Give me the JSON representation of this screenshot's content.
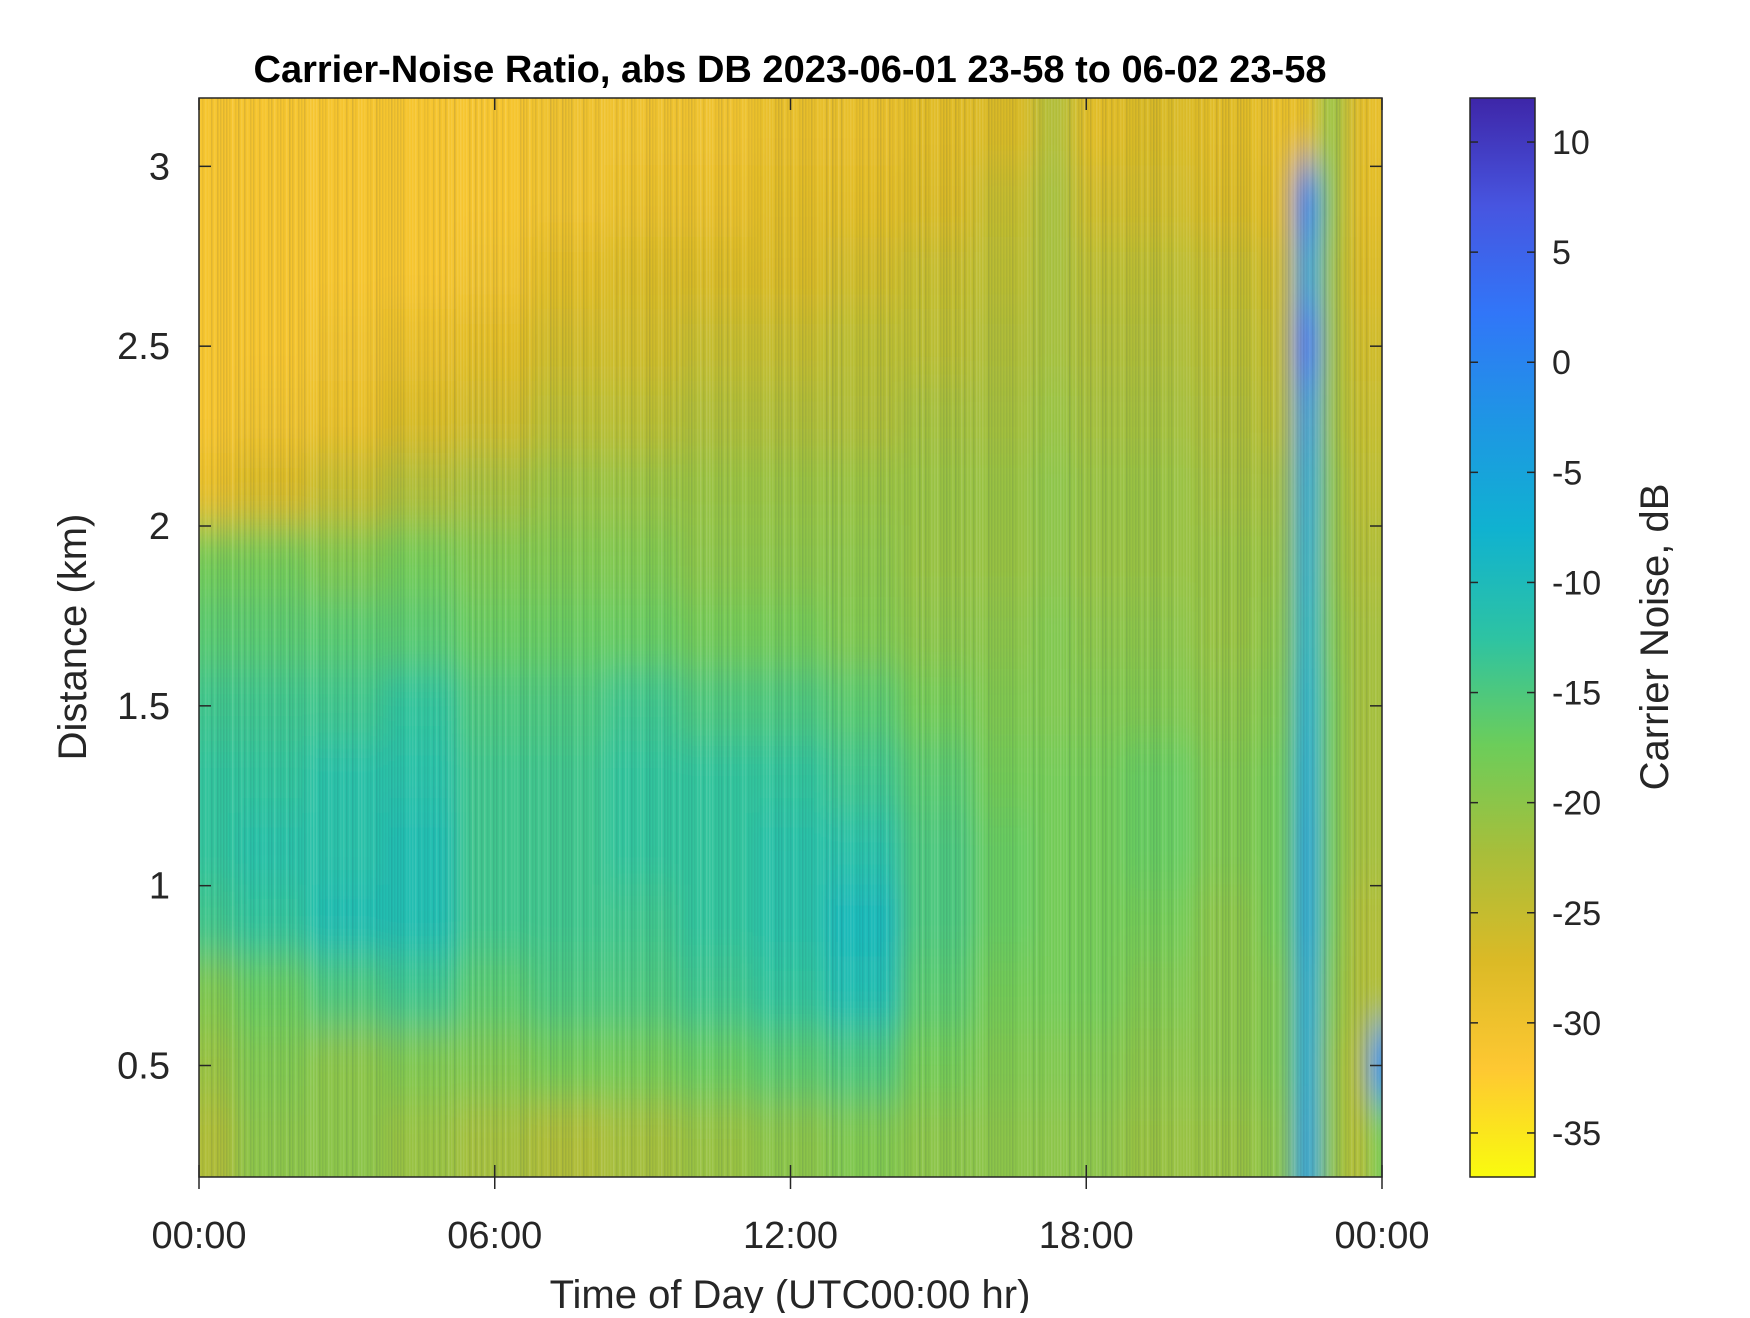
{
  "chart_data": {
    "type": "heatmap",
    "title": "Carrier-Noise Ratio, abs DB 2023-06-01 23-58 to 06-02 23-58",
    "xlabel": "Time of Day (UTC00:00 hr)",
    "ylabel": "Distance (km)",
    "colorbar_label": "Carrier Noise, dB",
    "x_unit": "hours",
    "xlim": [
      0,
      24
    ],
    "ylim": [
      0.19,
      3.19
    ],
    "clim": [
      -37,
      12
    ],
    "colormap": [
      "#f9fb0e",
      "#fec832",
      "#dbba26",
      "#a8be3a",
      "#6ccd5a",
      "#2dc3a3",
      "#10b2d0",
      "#1e96e4",
      "#3176f8",
      "#4755e0",
      "#3e26a8"
    ],
    "x_ticks": [
      {
        "value": 0,
        "label": "00:00"
      },
      {
        "value": 6,
        "label": "06:00"
      },
      {
        "value": 12,
        "label": "12:00"
      },
      {
        "value": 18,
        "label": "18:00"
      },
      {
        "value": 24,
        "label": "00:00"
      }
    ],
    "y_ticks": [
      {
        "value": 0.5,
        "label": "0.5"
      },
      {
        "value": 1,
        "label": "1"
      },
      {
        "value": 1.5,
        "label": "1.5"
      },
      {
        "value": 2,
        "label": "2"
      },
      {
        "value": 2.5,
        "label": "2.5"
      },
      {
        "value": 3,
        "label": "3"
      }
    ],
    "colorbar_ticks": [
      {
        "value": 10,
        "label": "10"
      },
      {
        "value": 5,
        "label": "5"
      },
      {
        "value": 0,
        "label": "0"
      },
      {
        "value": -5,
        "label": "-5"
      },
      {
        "value": -10,
        "label": "-10"
      },
      {
        "value": -15,
        "label": "-15"
      },
      {
        "value": -20,
        "label": "-20"
      },
      {
        "value": -25,
        "label": "-25"
      },
      {
        "value": -30,
        "label": "-30"
      },
      {
        "value": -35,
        "label": "-35"
      }
    ],
    "x_hours": [
      0,
      1.5,
      3,
      4.5,
      6,
      7.5,
      9,
      10.5,
      12,
      13.5,
      15,
      16.5,
      17.5,
      18,
      19.5,
      21,
      22,
      22.5,
      23,
      23.5,
      24
    ],
    "y_km": [
      3.1,
      2.9,
      2.7,
      2.5,
      2.3,
      2.1,
      1.9,
      1.7,
      1.5,
      1.3,
      1.1,
      0.9,
      0.7,
      0.5,
      0.3
    ],
    "values_db": [
      [
        -31,
        -31,
        -31,
        -31,
        -31,
        -30,
        -30,
        -30,
        -29,
        -29,
        -28,
        -27,
        -23,
        -28,
        -27,
        -28,
        -29,
        -29,
        -20,
        -28,
        -29
      ],
      [
        -31,
        -31,
        -31,
        -31,
        -31,
        -30,
        -29,
        -29,
        -28,
        -28,
        -27,
        -25,
        -22,
        -26,
        -26,
        -27,
        -28,
        0,
        -20,
        -28,
        -28
      ],
      [
        -31,
        -31,
        -31,
        -31,
        -30,
        -28,
        -27,
        -27,
        -27,
        -26,
        -25,
        -24,
        -22,
        -24,
        -24,
        -25,
        -26,
        -5,
        -21,
        -27,
        -27
      ],
      [
        -31,
        -31,
        -30,
        -29,
        -28,
        -26,
        -26,
        -25,
        -25,
        -24,
        -24,
        -23,
        -22,
        -23,
        -23,
        -24,
        -25,
        2,
        -21,
        -26,
        -26
      ],
      [
        -31,
        -30,
        -29,
        -27,
        -26,
        -24,
        -24,
        -23,
        -23,
        -23,
        -22,
        -22,
        -21,
        -22,
        -22,
        -23,
        -24,
        -4,
        -21,
        -25,
        -25
      ],
      [
        -29,
        -27,
        -25,
        -23,
        -22,
        -21,
        -21,
        -21,
        -21,
        -21,
        -21,
        -21,
        -20,
        -21,
        -21,
        -22,
        -22,
        -6,
        -20,
        -24,
        -24
      ],
      [
        -18,
        -18,
        -19,
        -18,
        -19,
        -19,
        -19,
        -20,
        -20,
        -20,
        -21,
        -21,
        -20,
        -21,
        -21,
        -21,
        -21,
        -7,
        -20,
        -23,
        -23
      ],
      [
        -16,
        -16,
        -16,
        -16,
        -17,
        -17,
        -17,
        -18,
        -18,
        -19,
        -20,
        -20,
        -19,
        -20,
        -20,
        -21,
        -20,
        -8,
        -19,
        -22,
        -22
      ],
      [
        -14,
        -14,
        -14,
        -13,
        -15,
        -15,
        -14,
        -15,
        -15,
        -16,
        -18,
        -19,
        -19,
        -19,
        -19,
        -20,
        -19,
        -7,
        -18,
        -22,
        -22
      ],
      [
        -13,
        -13,
        -12,
        -12,
        -14,
        -14,
        -13,
        -13,
        -13,
        -14,
        -16,
        -18,
        -18,
        -18,
        -17,
        -19,
        -18,
        -6,
        -18,
        -22,
        -22
      ],
      [
        -13,
        -12,
        -12,
        -11,
        -14,
        -14,
        -13,
        -13,
        -12,
        -12,
        -15,
        -17,
        -18,
        -18,
        -17,
        -19,
        -18,
        -5,
        -18,
        -22,
        -22
      ],
      [
        -14,
        -13,
        -11,
        -11,
        -14,
        -14,
        -14,
        -13,
        -12,
        -10,
        -15,
        -17,
        -18,
        -18,
        -18,
        -20,
        -18,
        -5,
        -18,
        -23,
        -23
      ],
      [
        -19,
        -17,
        -15,
        -14,
        -16,
        -15,
        -15,
        -14,
        -13,
        -11,
        -16,
        -18,
        -18,
        -18,
        -19,
        -20,
        -19,
        -6,
        -19,
        -23,
        -23
      ],
      [
        -21,
        -19,
        -20,
        -19,
        -19,
        -18,
        -18,
        -17,
        -16,
        -15,
        -18,
        -19,
        -19,
        -19,
        -20,
        -20,
        -19,
        -6,
        -20,
        -24,
        -2
      ],
      [
        -23,
        -20,
        -20,
        -21,
        -22,
        -23,
        -22,
        -21,
        -20,
        -19,
        -20,
        -20,
        -20,
        -20,
        -21,
        -21,
        -20,
        -5,
        -20,
        -24,
        -18
      ]
    ]
  }
}
